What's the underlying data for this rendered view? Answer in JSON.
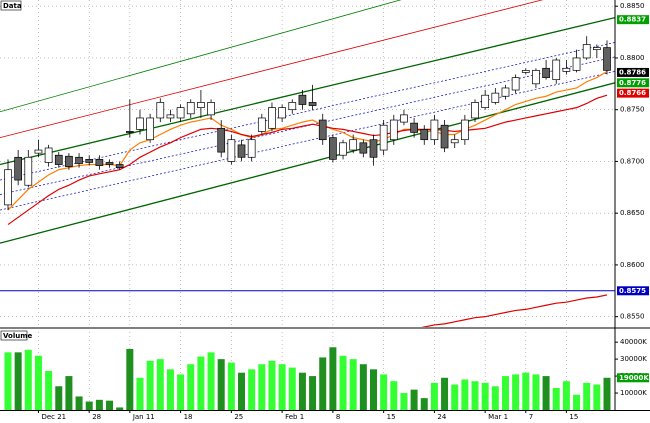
{
  "chart_data": {
    "type": "candlestick",
    "title": "Data",
    "categories": [
      null,
      null,
      null,
      "Dec 21",
      null,
      null,
      null,
      null,
      "28",
      null,
      null,
      null,
      "Jan 11",
      null,
      null,
      null,
      null,
      "18",
      null,
      null,
      null,
      null,
      "25",
      null,
      null,
      null,
      null,
      "Feb 1",
      null,
      null,
      null,
      null,
      "8",
      null,
      null,
      null,
      null,
      "15",
      null,
      null,
      null,
      null,
      "24",
      null,
      null,
      null,
      null,
      "Mar 1",
      null,
      null,
      null,
      "7",
      null,
      null,
      null,
      "15",
      null,
      null,
      null,
      null
    ],
    "open": [
      0.8658,
      0.8704,
      0.8677,
      0.8708,
      0.8699,
      0.8706,
      0.8705,
      0.8704,
      0.8702,
      0.8702,
      0.8699,
      0.8697,
      0.8729,
      0.8731,
      0.8721,
      0.8742,
      0.8742,
      0.8742,
      0.8746,
      0.8752,
      0.8745,
      0.8732,
      0.87,
      0.8716,
      0.8704,
      0.8729,
      0.8732,
      0.8742,
      0.875,
      0.8764,
      0.8757,
      0.874,
      0.8723,
      0.8706,
      0.8711,
      0.8718,
      0.8721,
      0.8711,
      0.8721,
      0.8738,
      0.8737,
      0.8731,
      0.8721,
      0.8735,
      0.8718,
      0.8721,
      0.8742,
      0.8752,
      0.8757,
      0.8763,
      0.8769,
      0.8786,
      0.8775,
      0.879,
      0.8779,
      0.8787,
      0.8788,
      0.88,
      0.8808,
      0.881
    ],
    "high": [
      0.8702,
      0.8711,
      0.8711,
      0.8721,
      0.8716,
      0.8709,
      0.8708,
      0.8708,
      0.8706,
      0.8706,
      0.8702,
      0.87,
      0.876,
      0.875,
      0.8746,
      0.8761,
      0.875,
      0.8755,
      0.876,
      0.8769,
      0.876,
      0.874,
      0.8726,
      0.8721,
      0.8726,
      0.8746,
      0.8757,
      0.8755,
      0.876,
      0.8769,
      0.8774,
      0.8746,
      0.8726,
      0.8721,
      0.8726,
      0.8721,
      0.8726,
      0.874,
      0.8745,
      0.875,
      0.8742,
      0.8735,
      0.8745,
      0.874,
      0.8726,
      0.8745,
      0.876,
      0.8769,
      0.8771,
      0.8774,
      0.8784,
      0.879,
      0.879,
      0.8798,
      0.88,
      0.8798,
      0.8808,
      0.8821,
      0.8813,
      0.8817
    ],
    "low": [
      0.8653,
      0.8677,
      0.8675,
      0.8704,
      0.8695,
      0.8694,
      0.8692,
      0.8694,
      0.8696,
      0.8692,
      0.8694,
      0.8692,
      0.8723,
      0.8726,
      0.8718,
      0.8738,
      0.8738,
      0.8738,
      0.8742,
      0.8742,
      0.874,
      0.8704,
      0.8697,
      0.87,
      0.87,
      0.8726,
      0.8729,
      0.8738,
      0.8746,
      0.875,
      0.875,
      0.8716,
      0.8699,
      0.8702,
      0.8708,
      0.8704,
      0.8696,
      0.8706,
      0.8716,
      0.8735,
      0.8723,
      0.8716,
      0.8716,
      0.8709,
      0.8713,
      0.8716,
      0.8738,
      0.875,
      0.8755,
      0.876,
      0.8766,
      0.8784,
      0.8771,
      0.8779,
      0.8775,
      0.8784,
      0.8786,
      0.8798,
      0.88,
      0.8784
    ],
    "close": [
      0.8692,
      0.8682,
      0.8704,
      0.8711,
      0.8713,
      0.8697,
      0.8695,
      0.8698,
      0.8699,
      0.8696,
      0.8697,
      0.8694,
      0.8728,
      0.8742,
      0.8742,
      0.8757,
      0.8745,
      0.8752,
      0.8757,
      0.8757,
      0.8757,
      0.8709,
      0.8721,
      0.8704,
      0.8721,
      0.8742,
      0.8752,
      0.8752,
      0.8757,
      0.8755,
      0.8754,
      0.8721,
      0.8702,
      0.8718,
      0.8721,
      0.8708,
      0.8704,
      0.8735,
      0.874,
      0.8745,
      0.8728,
      0.8721,
      0.874,
      0.8713,
      0.8721,
      0.874,
      0.8757,
      0.8764,
      0.8766,
      0.8771,
      0.8781,
      0.8788,
      0.8788,
      0.8781,
      0.8798,
      0.879,
      0.88,
      0.8813,
      0.881,
      0.8788
    ],
    "up_color": "#ffffff",
    "down_color": "#606060",
    "ylim": [
      0.854,
      0.8856
    ],
    "yticks": [
      {
        "value": 0.855,
        "label": "0.8550"
      },
      {
        "value": 0.86,
        "label": "0.8600"
      },
      {
        "value": 0.865,
        "label": "0.8650"
      },
      {
        "value": 0.87,
        "label": "0.8700"
      },
      {
        "value": 0.875,
        "label": "0.8750"
      },
      {
        "value": 0.88,
        "label": "0.8800"
      },
      {
        "value": 0.885,
        "label": "0.8850"
      }
    ],
    "grid": true,
    "moving_averages": [
      {
        "color": "#ff7f00",
        "values": [
          0.8653,
          0.8663,
          0.8673,
          0.868,
          0.8687,
          0.8692,
          0.8694,
          0.8696,
          0.8697,
          0.8697,
          0.8697,
          0.8696,
          0.8711,
          0.8718,
          0.8721,
          0.8726,
          0.8731,
          0.8735,
          0.8738,
          0.874,
          0.8742,
          0.8735,
          0.8731,
          0.8726,
          0.8723,
          0.8726,
          0.8731,
          0.8732,
          0.8735,
          0.8738,
          0.874,
          0.8735,
          0.8731,
          0.8728,
          0.8723,
          0.8721,
          0.8719,
          0.8721,
          0.8726,
          0.8731,
          0.8731,
          0.8729,
          0.8729,
          0.8726,
          0.8726,
          0.8731,
          0.8735,
          0.874,
          0.8745,
          0.875,
          0.8755,
          0.8758,
          0.8761,
          0.8763,
          0.8767,
          0.8769,
          0.8771,
          0.8777,
          0.8781,
          0.8787
        ]
      },
      {
        "color": "#e00000",
        "values": [
          0.8639,
          0.8646,
          0.8653,
          0.866,
          0.8667,
          0.8673,
          0.8677,
          0.8682,
          0.8686,
          0.8688,
          0.869,
          0.8692,
          0.8697,
          0.8704,
          0.8709,
          0.8714,
          0.8718,
          0.8723,
          0.8727,
          0.8731,
          0.8732,
          0.8731,
          0.8729,
          0.8726,
          0.8724,
          0.8726,
          0.8728,
          0.8731,
          0.8732,
          0.8734,
          0.8736,
          0.8734,
          0.8732,
          0.8731,
          0.8729,
          0.8727,
          0.8725,
          0.8726,
          0.8728,
          0.873,
          0.8731,
          0.8731,
          0.8731,
          0.873,
          0.8729,
          0.873,
          0.8731,
          0.8732,
          0.8735,
          0.8738,
          0.874,
          0.8742,
          0.8744,
          0.8746,
          0.8748,
          0.875,
          0.8752,
          0.8756,
          0.8761,
          0.8764
        ]
      },
      {
        "color": "#e00000",
        "values": [
          null,
          null,
          null,
          null,
          null,
          null,
          null,
          null,
          null,
          null,
          null,
          null,
          null,
          null,
          null,
          null,
          null,
          null,
          null,
          null,
          null,
          null,
          null,
          null,
          null,
          null,
          null,
          null,
          null,
          null,
          null,
          null,
          null,
          null,
          null,
          null,
          null,
          null,
          0.8535,
          0.8536,
          0.8538,
          0.854,
          0.8542,
          0.8543,
          0.8545,
          0.8547,
          0.8549,
          0.855,
          0.8552,
          0.8554,
          0.8556,
          0.8557,
          0.8559,
          0.8561,
          0.8563,
          0.8564,
          0.8566,
          0.8568,
          0.8569,
          0.8571
        ]
      }
    ],
    "channels": [
      {
        "color": "#006400",
        "width": 1.3,
        "dashed": false,
        "values": [
          0.8621,
          0.8776
        ]
      },
      {
        "color": "#006400",
        "width": 1.3,
        "dashed": false,
        "values": [
          0.8697,
          0.8839
        ]
      },
      {
        "color": "#008000",
        "width": 0.8,
        "dashed": false,
        "values": [
          0.8748,
          0.8914
        ]
      },
      {
        "color": "#e00000",
        "width": 0.8,
        "dashed": false,
        "values": [
          0.8723,
          0.8874
        ]
      },
      {
        "color": "#0000c0",
        "width": 0.7,
        "dashed": true,
        "values": [
          0.8682,
          0.8815
        ]
      },
      {
        "color": "#0000c0",
        "width": 0.7,
        "dashed": true,
        "values": [
          0.8668,
          0.8801
        ]
      },
      {
        "color": "#0000c0",
        "width": 0.7,
        "dashed": true,
        "values": [
          0.8653,
          0.8787
        ]
      }
    ],
    "hlines": [
      {
        "value": 0.8575,
        "color": "#0000c0"
      }
    ],
    "price_markers": [
      {
        "value": 0.8837,
        "color": "#00a000"
      },
      {
        "value": 0.8786,
        "color": "#000000"
      },
      {
        "value": 0.8776,
        "color": "#00a000"
      },
      {
        "value": 0.8766,
        "color": "#e00000"
      },
      {
        "value": 0.8575,
        "color": "#0000c0"
      }
    ],
    "volume": {
      "title": "Volume",
      "values": [
        34000,
        34000,
        35500,
        32000,
        23000,
        14000,
        20000,
        8000,
        5000,
        6000,
        5500,
        1500,
        36000,
        19000,
        29000,
        30000,
        24000,
        21000,
        27000,
        31500,
        34000,
        30000,
        28000,
        22000,
        24000,
        27000,
        29000,
        27000,
        25000,
        22000,
        20000,
        31000,
        37000,
        32000,
        30000,
        27000,
        24000,
        21000,
        17000,
        10000,
        12000,
        7000,
        16000,
        19000,
        15000,
        18000,
        17000,
        16000,
        14000,
        20000,
        21000,
        22000,
        21000,
        20000,
        13000,
        17000,
        9000,
        16000,
        15000,
        19000
      ],
      "up_color": "#33ff33",
      "down_color": "#1f8f1f",
      "ylim": [
        0,
        46000
      ],
      "yticks": [
        {
          "value": 10000,
          "label": "10000K"
        },
        {
          "value": 20000,
          "label": "20000K"
        },
        {
          "value": 30000,
          "label": "30000K"
        },
        {
          "value": 40000,
          "label": "40000K"
        }
      ],
      "marker": {
        "value": 19000,
        "label": "19000K",
        "color": "#00a000"
      }
    }
  }
}
